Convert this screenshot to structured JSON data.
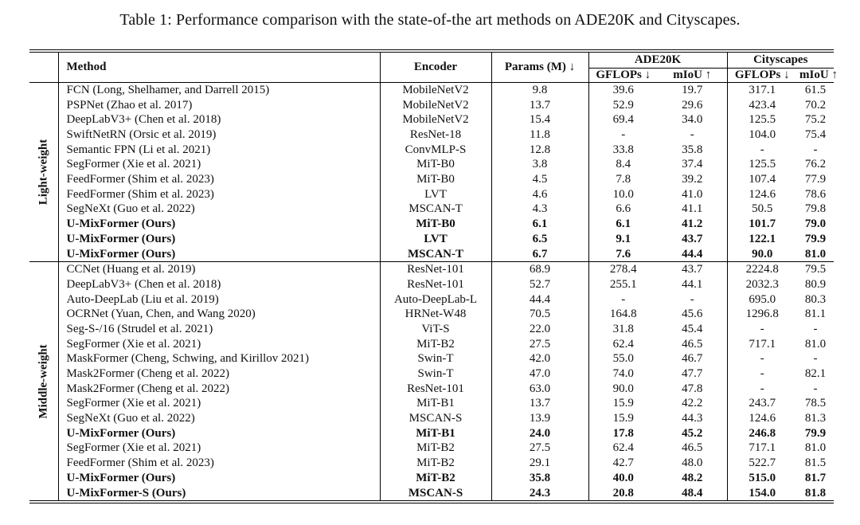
{
  "caption": "Table 1: Performance comparison with the state-of-the art methods on ADE20K and Cityscapes.",
  "headers": {
    "method": "Method",
    "encoder": "Encoder",
    "params": "Params (M) ↓",
    "ade20k": "ADE20K",
    "cityscapes": "Cityscapes",
    "gflops": "GFLOPs ↓",
    "miou": "mIoU ↑"
  },
  "groups": [
    {
      "label": "Light-weight",
      "rows": [
        {
          "method": "FCN (Long, Shelhamer, and Darrell 2015)",
          "encoder": "MobileNetV2",
          "params": "9.8",
          "ade_gflops": "39.6",
          "ade_miou": "19.7",
          "city_gflops": "317.1",
          "city_miou": "61.5",
          "ours": false
        },
        {
          "method": "PSPNet (Zhao et al. 2017)",
          "encoder": "MobileNetV2",
          "params": "13.7",
          "ade_gflops": "52.9",
          "ade_miou": "29.6",
          "city_gflops": "423.4",
          "city_miou": "70.2",
          "ours": false
        },
        {
          "method": "DeepLabV3+ (Chen et al. 2018)",
          "encoder": "MobileNetV2",
          "params": "15.4",
          "ade_gflops": "69.4",
          "ade_miou": "34.0",
          "city_gflops": "125.5",
          "city_miou": "75.2",
          "ours": false
        },
        {
          "method": "SwiftNetRN (Orsic et al. 2019)",
          "encoder": "ResNet-18",
          "params": "11.8",
          "ade_gflops": "-",
          "ade_miou": "-",
          "city_gflops": "104.0",
          "city_miou": "75.4",
          "ours": false
        },
        {
          "method": "Semantic FPN (Li et al. 2021)",
          "encoder": "ConvMLP-S",
          "params": "12.8",
          "ade_gflops": "33.8",
          "ade_miou": "35.8",
          "city_gflops": "-",
          "city_miou": "-",
          "ours": false
        },
        {
          "method": "SegFormer (Xie et al. 2021)",
          "encoder": "MiT-B0",
          "params": "3.8",
          "ade_gflops": "8.4",
          "ade_miou": "37.4",
          "city_gflops": "125.5",
          "city_miou": "76.2",
          "ours": false
        },
        {
          "method": "FeedFormer (Shim et al. 2023)",
          "encoder": "MiT-B0",
          "params": "4.5",
          "ade_gflops": "7.8",
          "ade_miou": "39.2",
          "city_gflops": "107.4",
          "city_miou": "77.9",
          "ours": false
        },
        {
          "method": "FeedFormer (Shim et al. 2023)",
          "encoder": "LVT",
          "params": "4.6",
          "ade_gflops": "10.0",
          "ade_miou": "41.0",
          "city_gflops": "124.6",
          "city_miou": "78.6",
          "ours": false
        },
        {
          "method": "SegNeXt (Guo et al. 2022)",
          "encoder": "MSCAN-T",
          "params": "4.3",
          "ade_gflops": "6.6",
          "ade_miou": "41.1",
          "city_gflops": "50.5",
          "city_miou": "79.8",
          "ours": false
        },
        {
          "method": "U-MixFormer (Ours)",
          "encoder": "MiT-B0",
          "params": "6.1",
          "ade_gflops": "6.1",
          "ade_miou": "41.2",
          "city_gflops": "101.7",
          "city_miou": "79.0",
          "ours": true
        },
        {
          "method": "U-MixFormer (Ours)",
          "encoder": "LVT",
          "params": "6.5",
          "ade_gflops": "9.1",
          "ade_miou": "43.7",
          "city_gflops": "122.1",
          "city_miou": "79.9",
          "ours": true
        },
        {
          "method": "U-MixFormer (Ours)",
          "encoder": "MSCAN-T",
          "params": "6.7",
          "ade_gflops": "7.6",
          "ade_miou": "44.4",
          "city_gflops": "90.0",
          "city_miou": "81.0",
          "ours": true
        }
      ]
    },
    {
      "label": "Middle-weight",
      "rows": [
        {
          "method": "CCNet (Huang et al. 2019)",
          "encoder": "ResNet-101",
          "params": "68.9",
          "ade_gflops": "278.4",
          "ade_miou": "43.7",
          "city_gflops": "2224.8",
          "city_miou": "79.5",
          "ours": false
        },
        {
          "method": "DeepLabV3+ (Chen et al. 2018)",
          "encoder": "ResNet-101",
          "params": "52.7",
          "ade_gflops": "255.1",
          "ade_miou": "44.1",
          "city_gflops": "2032.3",
          "city_miou": "80.9",
          "ours": false
        },
        {
          "method": "Auto-DeepLab (Liu et al. 2019)",
          "encoder": "Auto-DeepLab-L",
          "params": "44.4",
          "ade_gflops": "-",
          "ade_miou": "-",
          "city_gflops": "695.0",
          "city_miou": "80.3",
          "ours": false
        },
        {
          "method": "OCRNet (Yuan, Chen, and Wang 2020)",
          "encoder": "HRNet-W48",
          "params": "70.5",
          "ade_gflops": "164.8",
          "ade_miou": "45.6",
          "city_gflops": "1296.8",
          "city_miou": "81.1",
          "ours": false
        },
        {
          "method": "Seg-S-/16 (Strudel et al. 2021)",
          "encoder": "ViT-S",
          "params": "22.0",
          "ade_gflops": "31.8",
          "ade_miou": "45.4",
          "city_gflops": "-",
          "city_miou": "-",
          "ours": false
        },
        {
          "method": "SegFormer (Xie et al. 2021)",
          "encoder": "MiT-B2",
          "params": "27.5",
          "ade_gflops": "62.4",
          "ade_miou": "46.5",
          "city_gflops": "717.1",
          "city_miou": "81.0",
          "ours": false
        },
        {
          "method": "MaskFormer (Cheng, Schwing, and Kirillov 2021)",
          "encoder": "Swin-T",
          "params": "42.0",
          "ade_gflops": "55.0",
          "ade_miou": "46.7",
          "city_gflops": "-",
          "city_miou": "-",
          "ours": false
        },
        {
          "method": "Mask2Former (Cheng et al. 2022)",
          "encoder": "Swin-T",
          "params": "47.0",
          "ade_gflops": "74.0",
          "ade_miou": "47.7",
          "city_gflops": "-",
          "city_miou": "82.1",
          "ours": false
        },
        {
          "method": "Mask2Former (Cheng et al. 2022)",
          "encoder": "ResNet-101",
          "params": "63.0",
          "ade_gflops": "90.0",
          "ade_miou": "47.8",
          "city_gflops": "-",
          "city_miou": "-",
          "ours": false
        },
        {
          "method": "SegFormer (Xie et al. 2021)",
          "encoder": "MiT-B1",
          "params": "13.7",
          "ade_gflops": "15.9",
          "ade_miou": "42.2",
          "city_gflops": "243.7",
          "city_miou": "78.5",
          "ours": false
        },
        {
          "method": "SegNeXt (Guo et al. 2022)",
          "encoder": "MSCAN-S",
          "params": "13.9",
          "ade_gflops": "15.9",
          "ade_miou": "44.3",
          "city_gflops": "124.6",
          "city_miou": "81.3",
          "ours": false
        },
        {
          "method": "U-MixFormer (Ours)",
          "encoder": "MiT-B1",
          "params": "24.0",
          "ade_gflops": "17.8",
          "ade_miou": "45.2",
          "city_gflops": "246.8",
          "city_miou": "79.9",
          "ours": true
        },
        {
          "method": "SegFormer (Xie et al. 2021)",
          "encoder": "MiT-B2",
          "params": "27.5",
          "ade_gflops": "62.4",
          "ade_miou": "46.5",
          "city_gflops": "717.1",
          "city_miou": "81.0",
          "ours": false
        },
        {
          "method": "FeedFormer (Shim et al. 2023)",
          "encoder": "MiT-B2",
          "params": "29.1",
          "ade_gflops": "42.7",
          "ade_miou": "48.0",
          "city_gflops": "522.7",
          "city_miou": "81.5",
          "ours": false
        },
        {
          "method": "U-MixFormer (Ours)",
          "encoder": "MiT-B2",
          "params": "35.8",
          "ade_gflops": "40.0",
          "ade_miou": "48.2",
          "city_gflops": "515.0",
          "city_miou": "81.7",
          "ours": true
        },
        {
          "method": "U-MixFormer-S (Ours)",
          "encoder": "MSCAN-S",
          "params": "24.3",
          "ade_gflops": "20.8",
          "ade_miou": "48.4",
          "city_gflops": "154.0",
          "city_miou": "81.8",
          "ours": true
        }
      ]
    }
  ]
}
